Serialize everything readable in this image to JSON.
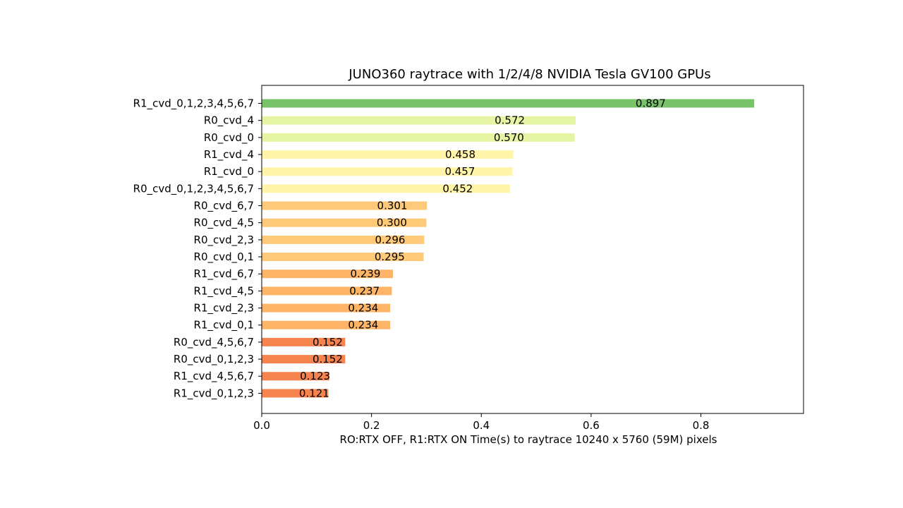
{
  "chart_data": {
    "type": "bar",
    "orientation": "horizontal",
    "title": "JUNO360 raytrace with 1/2/4/8 NVIDIA Tesla GV100 GPUs",
    "xlabel": "RO:RTX OFF, R1:RTX ON    Time(s) to raytrace 10240 x 5760 (59M) pixels",
    "ylabel": "",
    "xlim": [
      0,
      0.987
    ],
    "xticks": [
      "0.0",
      "0.2",
      "0.4",
      "0.6",
      "0.8"
    ],
    "grid": false,
    "legend": "none",
    "bars": [
      {
        "label": "R1_cvd_0,1,2,3,4,5,6,7",
        "value": 0.897,
        "value_label": "0.897",
        "color": "#78c36a"
      },
      {
        "label": "R0_cvd_4",
        "value": 0.572,
        "value_label": "0.572",
        "color": "#e6f5a4"
      },
      {
        "label": "R0_cvd_0",
        "value": 0.57,
        "value_label": "0.570",
        "color": "#e6f5a4"
      },
      {
        "label": "R1_cvd_4",
        "value": 0.458,
        "value_label": "0.458",
        "color": "#fff4a8"
      },
      {
        "label": "R1_cvd_0",
        "value": 0.457,
        "value_label": "0.457",
        "color": "#fff4a8"
      },
      {
        "label": "R0_cvd_0,1,2,3,4,5,6,7",
        "value": 0.452,
        "value_label": "0.452",
        "color": "#fff4a8"
      },
      {
        "label": "R0_cvd_6,7",
        "value": 0.301,
        "value_label": "0.301",
        "color": "#fec978"
      },
      {
        "label": "R0_cvd_4,5",
        "value": 0.3,
        "value_label": "0.300",
        "color": "#fec978"
      },
      {
        "label": "R0_cvd_2,3",
        "value": 0.296,
        "value_label": "0.296",
        "color": "#fec978"
      },
      {
        "label": "R0_cvd_0,1",
        "value": 0.295,
        "value_label": "0.295",
        "color": "#fec978"
      },
      {
        "label": "R1_cvd_6,7",
        "value": 0.239,
        "value_label": "0.239",
        "color": "#fdb466"
      },
      {
        "label": "R1_cvd_4,5",
        "value": 0.237,
        "value_label": "0.237",
        "color": "#fdb466"
      },
      {
        "label": "R1_cvd_2,3",
        "value": 0.234,
        "value_label": "0.234",
        "color": "#fdb466"
      },
      {
        "label": "R1_cvd_0,1",
        "value": 0.234,
        "value_label": "0.234",
        "color": "#fdb466"
      },
      {
        "label": "R0_cvd_4,5,6,7",
        "value": 0.152,
        "value_label": "0.152",
        "color": "#f7844e"
      },
      {
        "label": "R0_cvd_0,1,2,3",
        "value": 0.152,
        "value_label": "0.152",
        "color": "#f7844e"
      },
      {
        "label": "R1_cvd_4,5,6,7",
        "value": 0.123,
        "value_label": "0.123",
        "color": "#f7844e"
      },
      {
        "label": "R1_cvd_0,1,2,3",
        "value": 0.121,
        "value_label": "0.121",
        "color": "#f7844e"
      }
    ]
  }
}
